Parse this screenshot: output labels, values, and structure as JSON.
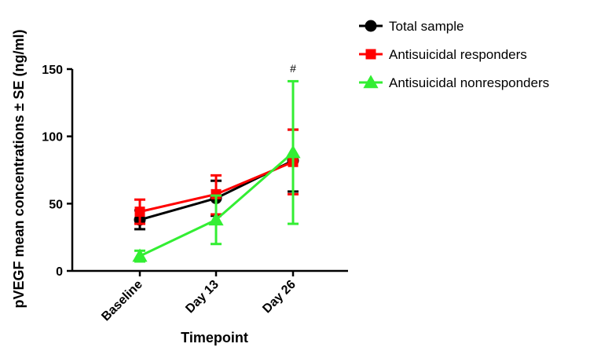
{
  "chart_data": {
    "type": "line",
    "title": "",
    "xlabel": "Timepoint",
    "ylabel": "pVEGF mean concentrations ± SE (ng/ml)",
    "categories": [
      "Baseline",
      "Day 13",
      "Day 26"
    ],
    "ylim": [
      0,
      150
    ],
    "yticks": [
      0,
      50,
      100,
      150
    ],
    "grid": false,
    "legend_position": "top-right",
    "series": [
      {
        "name": "Total sample",
        "color": "#000000",
        "marker": "circle",
        "values": [
          38,
          54,
          82
        ],
        "err_low": [
          31,
          41,
          59
        ],
        "err_high": [
          45,
          67,
          105
        ]
      },
      {
        "name": "Antisuicidal responders",
        "color": "#ff0000",
        "marker": "square",
        "values": [
          44,
          57,
          81
        ],
        "err_low": [
          35,
          42,
          57
        ],
        "err_high": [
          53,
          71,
          105
        ]
      },
      {
        "name": "Antisuicidal nonresponders",
        "color": "#33ee33",
        "marker": "triangle",
        "values": [
          11,
          38,
          88
        ],
        "err_low": [
          7,
          20,
          35
        ],
        "err_high": [
          15,
          56,
          141
        ]
      }
    ],
    "annotations": [
      {
        "category": "Day 26",
        "y_value": 150,
        "text": "#"
      }
    ]
  }
}
